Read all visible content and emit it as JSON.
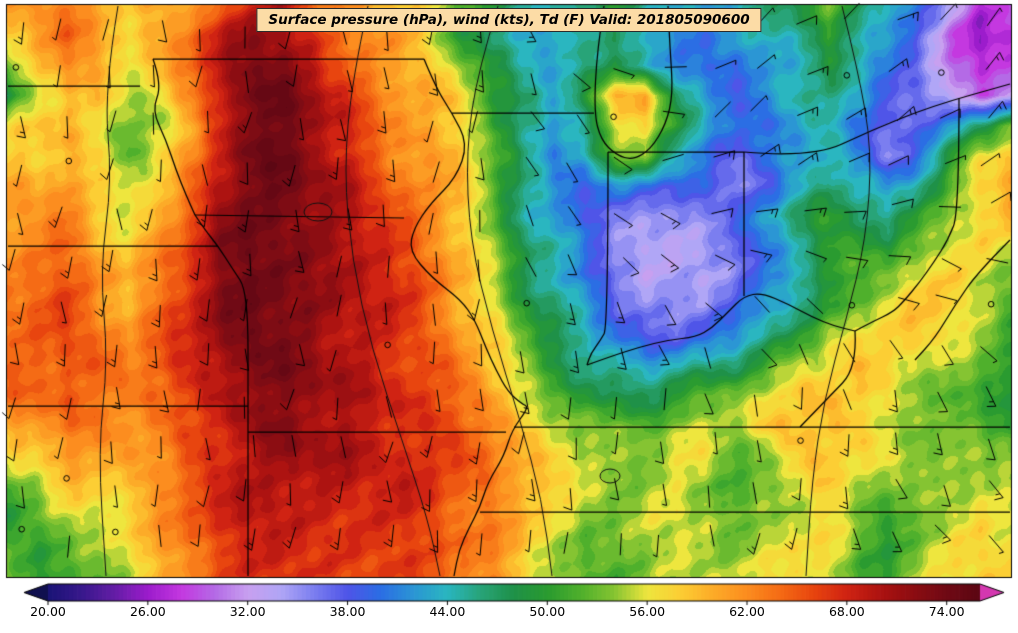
{
  "header": {
    "title": "Surface pressure (hPa), wind (kts), Td (F) Valid: 201805090600",
    "title_bg": "#fcdca6"
  },
  "chart_data": {
    "type": "heatmap",
    "title": "Surface pressure (hPa), wind (kts), Td (F) Valid: 201805090600",
    "field_label": "Td (F)",
    "valid_time": "201805090600",
    "overlays": [
      "wind-barbs",
      "state-borders",
      "pressure-contours"
    ],
    "colorbar": {
      "orientation": "horizontal",
      "tick_labels": [
        "20.00",
        "26.00",
        "32.00",
        "38.00",
        "44.00",
        "50.00",
        "56.00",
        "62.00",
        "68.00",
        "74.00"
      ],
      "tick_values": [
        20,
        26,
        32,
        38,
        44,
        50,
        56,
        62,
        68,
        74
      ],
      "vmin": 20,
      "vmax": 76,
      "under_color": "#10104f",
      "over_color": "#d438b0",
      "stops": [
        [
          20,
          "#1a1476"
        ],
        [
          22,
          "#38188c"
        ],
        [
          24,
          "#641ea6"
        ],
        [
          26,
          "#9c1ccc"
        ],
        [
          28,
          "#c438e0"
        ],
        [
          30,
          "#b46ae6"
        ],
        [
          32,
          "#c8a0f0"
        ],
        [
          34,
          "#b0a6f6"
        ],
        [
          36,
          "#7b7ef0"
        ],
        [
          38,
          "#4f55e8"
        ],
        [
          40,
          "#2b6ee4"
        ],
        [
          42,
          "#2b96d4"
        ],
        [
          44,
          "#2ab6c0"
        ],
        [
          46,
          "#28a478"
        ],
        [
          48,
          "#1f9148"
        ],
        [
          50,
          "#2a9b30"
        ],
        [
          52,
          "#4fb02c"
        ],
        [
          54,
          "#85c432"
        ],
        [
          56,
          "#eee63e"
        ],
        [
          58,
          "#fcce34"
        ],
        [
          60,
          "#fcab28"
        ],
        [
          62,
          "#fc8d1f"
        ],
        [
          64,
          "#f56b15"
        ],
        [
          66,
          "#e8450f"
        ],
        [
          68,
          "#d02313"
        ],
        [
          70,
          "#ad1311"
        ],
        [
          72,
          "#8c0d12"
        ],
        [
          74,
          "#700a15"
        ],
        [
          76,
          "#5c0713"
        ]
      ]
    },
    "grid": {
      "cols": 34,
      "rows": 20,
      "units": "F",
      "values": [
        [
          60,
          62,
          62,
          60,
          58,
          60,
          62,
          64,
          68,
          70,
          66,
          62,
          60,
          58,
          56,
          52,
          48,
          46,
          44,
          46,
          50,
          46,
          44,
          42,
          44,
          46,
          48,
          52,
          48,
          44,
          40,
          34,
          28,
          30
        ],
        [
          58,
          60,
          64,
          62,
          58,
          60,
          64,
          68,
          72,
          72,
          68,
          64,
          62,
          60,
          56,
          50,
          46,
          44,
          42,
          44,
          48,
          44,
          42,
          40,
          42,
          44,
          46,
          50,
          46,
          42,
          36,
          30,
          26,
          28
        ],
        [
          54,
          58,
          62,
          60,
          56,
          58,
          64,
          70,
          73,
          73,
          70,
          66,
          62,
          60,
          58,
          54,
          48,
          44,
          42,
          46,
          48,
          44,
          42,
          40,
          40,
          42,
          44,
          48,
          44,
          40,
          36,
          30,
          27,
          30
        ],
        [
          48,
          56,
          60,
          58,
          54,
          56,
          62,
          70,
          74,
          74,
          71,
          68,
          64,
          62,
          60,
          56,
          50,
          46,
          44,
          50,
          58,
          60,
          46,
          42,
          40,
          42,
          44,
          46,
          42,
          38,
          38,
          32,
          28,
          32
        ],
        [
          56,
          58,
          60,
          56,
          52,
          54,
          60,
          68,
          74,
          74,
          72,
          68,
          64,
          62,
          60,
          56,
          50,
          46,
          42,
          46,
          56,
          58,
          50,
          42,
          40,
          40,
          42,
          44,
          40,
          36,
          38,
          42,
          48,
          54
        ],
        [
          58,
          58,
          60,
          56,
          52,
          56,
          62,
          70,
          74,
          74,
          72,
          68,
          66,
          62,
          60,
          58,
          52,
          46,
          42,
          44,
          52,
          54,
          44,
          40,
          38,
          40,
          42,
          44,
          40,
          36,
          40,
          48,
          56,
          58
        ],
        [
          60,
          60,
          62,
          58,
          54,
          58,
          64,
          70,
          74,
          74,
          72,
          70,
          66,
          64,
          62,
          58,
          52,
          46,
          42,
          40,
          42,
          40,
          38,
          38,
          36,
          38,
          42,
          46,
          44,
          42,
          46,
          52,
          58,
          60
        ],
        [
          60,
          62,
          62,
          58,
          56,
          60,
          66,
          71,
          74,
          74,
          72,
          70,
          68,
          64,
          62,
          58,
          52,
          46,
          42,
          38,
          36,
          36,
          35,
          36,
          38,
          42,
          48,
          50,
          48,
          46,
          50,
          54,
          58,
          60
        ],
        [
          62,
          62,
          64,
          60,
          58,
          62,
          66,
          72,
          74,
          74,
          73,
          71,
          68,
          66,
          62,
          60,
          54,
          48,
          44,
          40,
          36,
          34,
          34,
          35,
          36,
          40,
          46,
          50,
          52,
          48,
          52,
          56,
          58,
          56
        ],
        [
          62,
          64,
          64,
          62,
          60,
          62,
          68,
          72,
          74,
          74,
          73,
          71,
          69,
          66,
          64,
          60,
          54,
          48,
          44,
          40,
          36,
          34,
          35,
          34,
          36,
          40,
          44,
          48,
          52,
          54,
          56,
          58,
          56,
          54
        ],
        [
          64,
          64,
          66,
          62,
          60,
          64,
          68,
          72,
          74,
          74,
          73,
          71,
          69,
          67,
          64,
          60,
          56,
          50,
          46,
          42,
          38,
          36,
          36,
          36,
          38,
          42,
          46,
          50,
          54,
          56,
          58,
          58,
          56,
          52
        ],
        [
          64,
          65,
          66,
          63,
          62,
          64,
          68,
          72,
          74,
          73,
          72,
          70,
          69,
          67,
          64,
          61,
          57,
          52,
          48,
          44,
          40,
          38,
          38,
          40,
          42,
          46,
          50,
          54,
          56,
          58,
          58,
          56,
          54,
          52
        ],
        [
          64,
          65,
          66,
          64,
          62,
          65,
          68,
          71,
          73,
          73,
          72,
          70,
          69,
          67,
          65,
          62,
          58,
          54,
          50,
          46,
          44,
          42,
          44,
          46,
          48,
          52,
          54,
          56,
          58,
          58,
          56,
          54,
          52,
          50
        ],
        [
          63,
          64,
          65,
          63,
          62,
          64,
          67,
          70,
          72,
          72,
          72,
          70,
          69,
          68,
          66,
          63,
          60,
          56,
          52,
          50,
          48,
          48,
          50,
          52,
          54,
          56,
          58,
          58,
          58,
          56,
          54,
          52,
          52,
          50
        ],
        [
          60,
          62,
          64,
          62,
          61,
          63,
          66,
          69,
          71,
          72,
          71,
          70,
          69,
          68,
          66,
          64,
          62,
          58,
          56,
          54,
          52,
          52,
          54,
          56,
          56,
          58,
          58,
          58,
          57,
          56,
          54,
          52,
          52,
          50
        ],
        [
          56,
          58,
          62,
          60,
          60,
          62,
          66,
          68,
          70,
          71,
          71,
          70,
          69,
          68,
          67,
          65,
          63,
          60,
          58,
          56,
          54,
          54,
          55,
          56,
          52,
          54,
          57,
          58,
          57,
          56,
          55,
          54,
          55,
          54
        ],
        [
          52,
          54,
          58,
          58,
          59,
          62,
          66,
          68,
          70,
          70,
          70,
          69,
          68,
          68,
          67,
          65,
          63,
          61,
          58,
          55,
          54,
          55,
          56,
          54,
          50,
          53,
          56,
          58,
          56,
          54,
          53,
          54,
          56,
          55
        ],
        [
          50,
          52,
          55,
          56,
          58,
          61,
          65,
          67,
          69,
          70,
          69,
          68,
          68,
          67,
          66,
          64,
          62,
          60,
          56,
          53,
          54,
          56,
          57,
          55,
          52,
          54,
          56,
          57,
          54,
          50,
          52,
          55,
          57,
          56
        ],
        [
          52,
          50,
          52,
          54,
          57,
          60,
          64,
          66,
          68,
          69,
          68,
          68,
          67,
          66,
          65,
          64,
          62,
          59,
          55,
          52,
          53,
          55,
          56,
          55,
          53,
          55,
          57,
          56,
          53,
          50,
          53,
          56,
          58,
          57
        ],
        [
          54,
          50,
          50,
          53,
          56,
          59,
          63,
          65,
          67,
          68,
          68,
          67,
          66,
          66,
          65,
          64,
          62,
          58,
          54,
          51,
          52,
          54,
          56,
          56,
          54,
          56,
          58,
          56,
          52,
          51,
          54,
          57,
          58,
          58
        ]
      ]
    }
  }
}
